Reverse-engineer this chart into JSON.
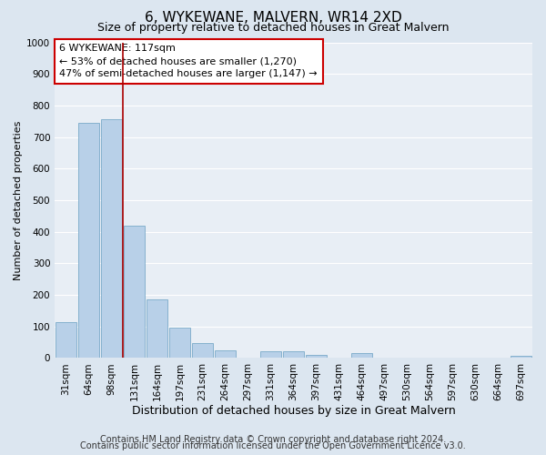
{
  "title": "6, WYKEWANE, MALVERN, WR14 2XD",
  "subtitle": "Size of property relative to detached houses in Great Malvern",
  "xlabel": "Distribution of detached houses by size in Great Malvern",
  "ylabel": "Number of detached properties",
  "bar_labels": [
    "31sqm",
    "64sqm",
    "98sqm",
    "131sqm",
    "164sqm",
    "197sqm",
    "231sqm",
    "264sqm",
    "297sqm",
    "331sqm",
    "364sqm",
    "397sqm",
    "431sqm",
    "464sqm",
    "497sqm",
    "530sqm",
    "564sqm",
    "597sqm",
    "630sqm",
    "664sqm",
    "697sqm"
  ],
  "bar_values": [
    113,
    745,
    757,
    420,
    185,
    96,
    46,
    25,
    0,
    20,
    20,
    10,
    0,
    14,
    0,
    0,
    0,
    0,
    0,
    0,
    7
  ],
  "bar_color": "#b8d0e8",
  "bar_edge_color": "#7aaac8",
  "ylim": [
    0,
    1000
  ],
  "yticks": [
    0,
    100,
    200,
    300,
    400,
    500,
    600,
    700,
    800,
    900,
    1000
  ],
  "vline_color": "#aa0000",
  "annotation_title": "6 WYKEWANE: 117sqm",
  "annotation_line1": "← 53% of detached houses are smaller (1,270)",
  "annotation_line2": "47% of semi-detached houses are larger (1,147) →",
  "annotation_box_edge_color": "#cc0000",
  "annotation_box_face_color": "#ffffff",
  "footer1": "Contains HM Land Registry data © Crown copyright and database right 2024.",
  "footer2": "Contains public sector information licensed under the Open Government Licence v3.0.",
  "bg_color": "#dce6f0",
  "plot_bg_color": "#e8eef5",
  "grid_color": "#ffffff",
  "title_fontsize": 11,
  "subtitle_fontsize": 9,
  "xlabel_fontsize": 9,
  "ylabel_fontsize": 8,
  "tick_fontsize": 7.5,
  "footer_fontsize": 7,
  "annot_fontsize": 8
}
